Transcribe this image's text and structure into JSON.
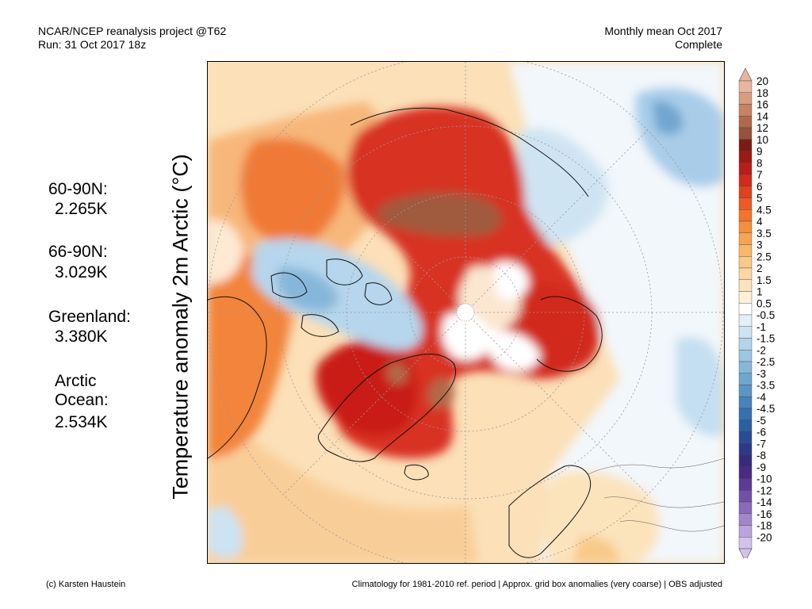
{
  "header": {
    "left_line1": "NCAR/NCEP reanalysis project @T62",
    "left_line2": "Run: 31 Oct 2017 18z",
    "right_line1": "Monthly mean Oct 2017",
    "right_line2": "Complete"
  },
  "map": {
    "title": "Temperature anomaly 2m Arctic (°C)"
  },
  "regions": [
    {
      "label": "60-90N:",
      "value": "2.265K"
    },
    {
      "label": "66-90N:",
      "value": "3.029K"
    },
    {
      "label": "Greenland:",
      "value": "3.380K"
    },
    {
      "label": "Arctic\nOcean:",
      "value": "2.534K"
    }
  ],
  "colorbar": {
    "levels": [
      "20",
      "18",
      "16",
      "14",
      "12",
      "10",
      "9",
      "8",
      "7",
      "6",
      "5",
      "4.5",
      "4",
      "3.5",
      "3",
      "2.5",
      "2",
      "1.5",
      "1",
      "0.5",
      "-0.5",
      "-1",
      "-1.5",
      "-2",
      "-2.5",
      "-3",
      "-3.5",
      "-4",
      "-4.5",
      "-5",
      "-6",
      "-7",
      "-8",
      "-9",
      "-10",
      "-12",
      "-14",
      "-16",
      "-18",
      "-20"
    ],
    "colors": [
      "#e8b59e",
      "#d99c7f",
      "#c88362",
      "#b06a4a",
      "#96523a",
      "#7a1c14",
      "#9c1a14",
      "#b81e18",
      "#d12a1e",
      "#e0411f",
      "#ec5a26",
      "#f2752e",
      "#f58f3c",
      "#f7a452",
      "#f8b86a",
      "#f9c987",
      "#fad7a2",
      "#fbe3bc",
      "#fdf0d8",
      "#ffffff",
      "#e3f0f9",
      "#cbe3f3",
      "#b3d5ec",
      "#9cc6e3",
      "#86b7da",
      "#6fa6d0",
      "#5a95c5",
      "#4683ba",
      "#3671ae",
      "#2c5fa2",
      "#2a4b94",
      "#2c3a86",
      "#362c7b",
      "#4a2a84",
      "#5d3a95",
      "#7350a8",
      "#8a6abb",
      "#a286cc",
      "#bba3dc",
      "#d3c2ea"
    ]
  },
  "footer": {
    "left": "(c) Karsten Haustein",
    "right": "Climatology for 1981-2010 ref. period | Approx. grid box anomalies (very coarse) | OBS adjusted"
  }
}
